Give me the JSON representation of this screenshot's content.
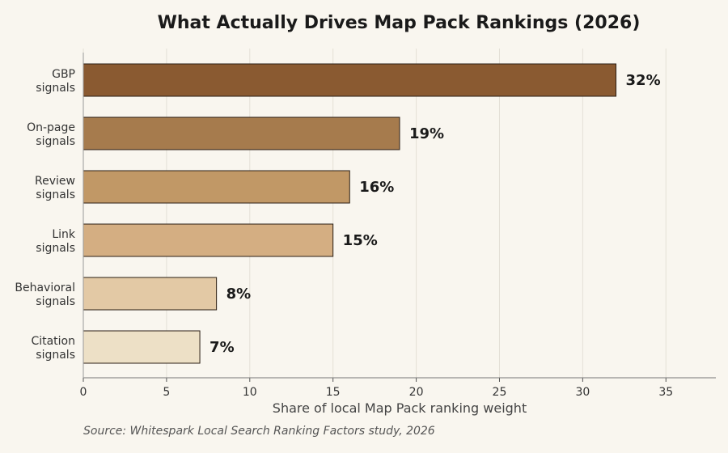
{
  "chart_data": {
    "type": "bar",
    "orientation": "horizontal",
    "title": "What Actually Drives Map Pack Rankings (2026)",
    "xlabel": "Share of local Map Pack ranking weight",
    "ylabel": "",
    "xlim": [
      0,
      38
    ],
    "xticks": [
      0,
      5,
      10,
      15,
      20,
      25,
      30,
      35
    ],
    "grid": true,
    "categories": [
      [
        "GBP",
        "signals"
      ],
      [
        "On-page",
        "signals"
      ],
      [
        "Review",
        "signals"
      ],
      [
        "Link",
        "signals"
      ],
      [
        "Behavioral",
        "signals"
      ],
      [
        "Citation",
        "signals"
      ]
    ],
    "values": [
      32,
      19,
      16,
      15,
      8,
      7
    ],
    "value_labels": [
      "32%",
      "19%",
      "16%",
      "15%",
      "8%",
      "7%"
    ],
    "colors": [
      "#8a5a31",
      "#a67b4d",
      "#c19866",
      "#d4ae82",
      "#e3c9a5",
      "#ede0c6"
    ],
    "source": "Source: Whitespark Local Search Ranking Factors study, 2026"
  }
}
